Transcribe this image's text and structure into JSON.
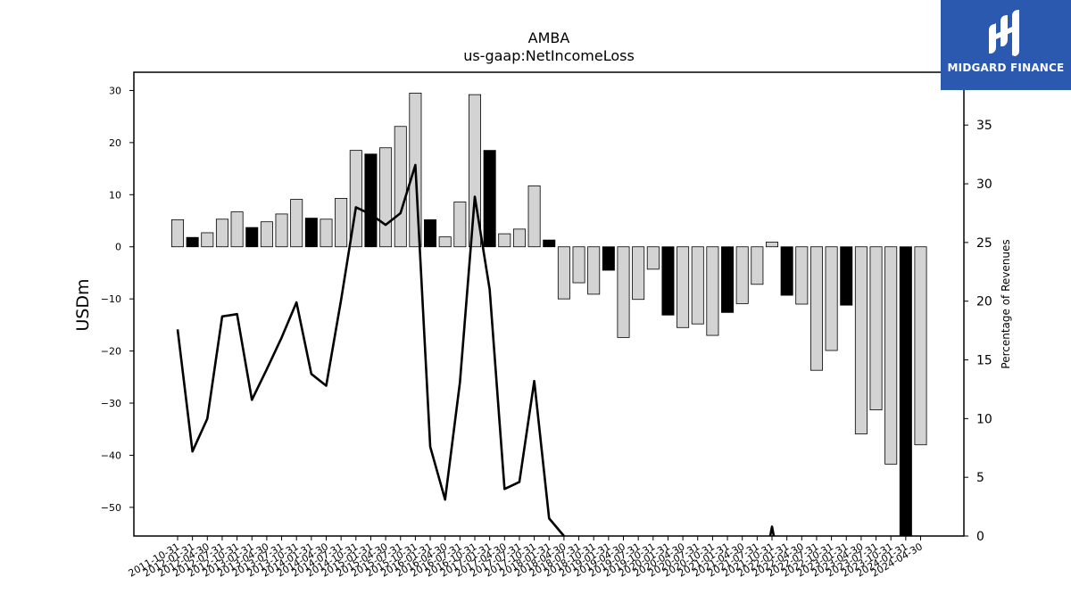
{
  "chart_data": {
    "type": "bar",
    "title": "AMBA",
    "subtitle": "us-gaap:NetIncomeLoss",
    "ylabel": "USDm",
    "y2label": "Percentage of Revenues",
    "ylim": [
      -55.5,
      33.5
    ],
    "y2lim": [
      0,
      39.5
    ],
    "yticks": [
      30,
      20,
      10,
      0,
      -10,
      -20,
      -30,
      -40,
      -50
    ],
    "y2ticks": [
      35,
      30,
      25,
      20,
      15,
      10,
      5,
      0
    ],
    "categories": [
      "2011-10-31",
      "2012-01-31",
      "2012-04-30",
      "2012-07-31",
      "2012-10-31",
      "2013-01-31",
      "2013-04-30",
      "2013-07-31",
      "2013-10-31",
      "2014-01-31",
      "2014-04-30",
      "2014-07-31",
      "2014-10-31",
      "2015-01-31",
      "2015-04-30",
      "2015-07-31",
      "2015-10-31",
      "2016-01-31",
      "2016-04-30",
      "2016-07-31",
      "2016-10-31",
      "2017-01-31",
      "2017-04-30",
      "2017-07-31",
      "2017-10-31",
      "2018-01-31",
      "2018-04-30",
      "2018-07-31",
      "2018-10-31",
      "2019-01-31",
      "2019-04-30",
      "2019-07-31",
      "2019-10-31",
      "2020-01-31",
      "2020-04-30",
      "2020-07-31",
      "2020-10-31",
      "2021-01-31",
      "2021-04-30",
      "2021-07-31",
      "2021-10-31",
      "2022-01-31",
      "2022-04-30",
      "2022-07-31",
      "2022-10-31",
      "2023-01-31",
      "2023-04-30",
      "2023-07-31",
      "2023-10-31",
      "2024-01-31",
      "2024-04-30"
    ],
    "series": [
      {
        "type": "bar",
        "values": [
          5.2,
          1.8,
          2.7,
          5.3,
          6.7,
          3.7,
          4.8,
          6.3,
          9.1,
          5.5,
          5.3,
          9.3,
          18.5,
          17.8,
          19.0,
          23.1,
          29.5,
          5.2,
          1.9,
          8.6,
          29.2,
          18.5,
          2.5,
          3.4,
          11.7,
          1.3,
          -10.0,
          -6.9,
          -9.1,
          -4.5,
          -17.4,
          -10.1,
          -4.3,
          -13.1,
          -15.5,
          -14.8,
          -17.0,
          -12.6,
          -10.9,
          -7.2,
          0.9,
          -9.3,
          -11.0,
          -23.7,
          -19.9,
          -11.2,
          -35.9,
          -31.3,
          -41.7,
          -55.5,
          -38.0
        ],
        "highlight": [
          false,
          true,
          false,
          false,
          false,
          true,
          false,
          false,
          false,
          true,
          false,
          false,
          false,
          true,
          false,
          false,
          false,
          true,
          false,
          false,
          false,
          true,
          false,
          false,
          false,
          true,
          false,
          false,
          false,
          true,
          false,
          false,
          false,
          true,
          false,
          false,
          false,
          true,
          false,
          false,
          false,
          true,
          false,
          false,
          false,
          true,
          false,
          false,
          false,
          true,
          false
        ],
        "colors": {
          "normal": "#d3d3d3",
          "highlight": "#000000",
          "edge": "#000000"
        }
      },
      {
        "type": "line",
        "axis": "right",
        "values": [
          17.6,
          7.2,
          10.0,
          18.7,
          18.9,
          11.6,
          14.2,
          16.9,
          19.9,
          13.8,
          12.8,
          20.1,
          28.0,
          27.4,
          26.5,
          27.5,
          31.6,
          7.6,
          3.1,
          13.1,
          28.9,
          21.0,
          4.0,
          4.6,
          13.2,
          1.5,
          null,
          null,
          null,
          null,
          null,
          null,
          null,
          null,
          null,
          null,
          null,
          null,
          null,
          null,
          0.8,
          null,
          null,
          null,
          null,
          null,
          null,
          null,
          null,
          null,
          null
        ],
        "color": "#000000"
      }
    ]
  },
  "logo": {
    "brand": "MIDGARD FINANCE",
    "background": "#2b59b0"
  }
}
